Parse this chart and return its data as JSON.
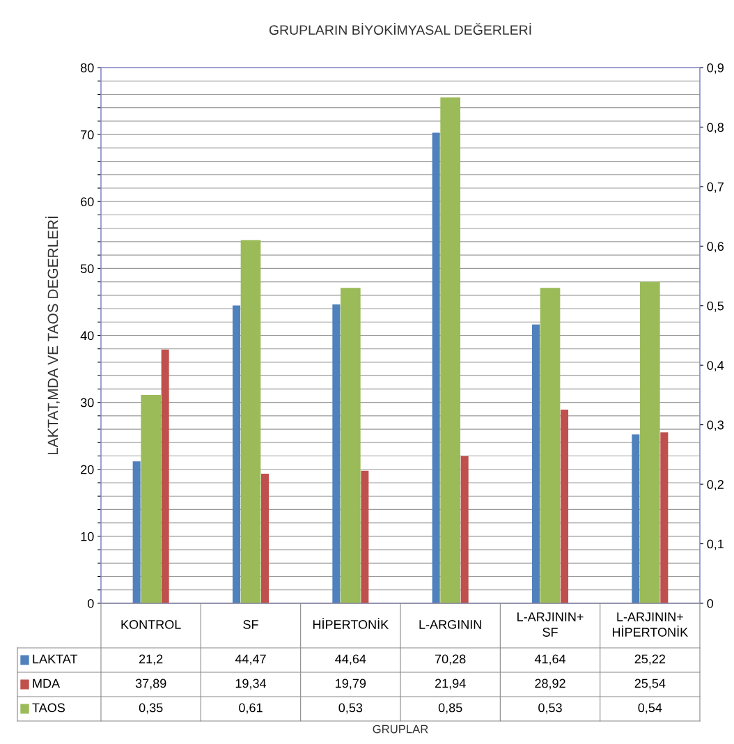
{
  "chart_data": {
    "type": "bar",
    "title": "GRUPLARIN BİYOKİMYASAL DEĞERLERİ",
    "annotations": [
      "GRUPLAR"
    ],
    "ylabel": "LAKTAT,MDA VE TAOS DEGERLERİ",
    "categories": [
      "KONTROL",
      "SF",
      "HİPERTONİK",
      "L-ARGININ",
      "L-ARJININ+SF",
      "L-ARJININ+HİPERTONİK"
    ],
    "series": [
      {
        "name": "LAKTAT",
        "color": "#4f81bd",
        "values": [
          21.2,
          44.47,
          44.64,
          70.28,
          41.64,
          25.22
        ],
        "value_labels": [
          "21,2",
          "44,47",
          "44,64",
          "70,28",
          "41,64",
          "25,22"
        ]
      },
      {
        "name": "MDA",
        "color": "#c0504d",
        "values": [
          37.89,
          19.34,
          19.79,
          21.94,
          28.92,
          25.54
        ],
        "value_labels": [
          "37,89",
          "19,34",
          "19,79",
          "21,94",
          "28,92",
          "25,54"
        ]
      },
      {
        "name": "TAOS",
        "color": "#9bbb59",
        "axis": "y2",
        "values": [
          0.35,
          0.61,
          0.53,
          0.85,
          0.53,
          0.54
        ],
        "value_labels": [
          "0,35",
          "0,61",
          "0,53",
          "0,85",
          "0,53",
          "0,54"
        ]
      }
    ],
    "ylim": [
      0,
      80
    ],
    "yticks": [
      0,
      {
        "value": 2,
        "label": null
      },
      {
        "value": 4,
        "label": null
      },
      {
        "value": 6,
        "label": null
      },
      {
        "value": 8,
        "label": null
      },
      10,
      {
        "value": 12,
        "label": null
      },
      {
        "value": 14,
        "label": null
      },
      {
        "value": 16,
        "label": null
      },
      {
        "value": 18,
        "label": null
      },
      20,
      {
        "value": 22,
        "label": null
      },
      {
        "value": 24,
        "label": null
      },
      {
        "value": 26,
        "label": null
      },
      {
        "value": 28,
        "label": null
      },
      30,
      {
        "value": 32,
        "label": null
      },
      {
        "value": 34,
        "label": null
      },
      {
        "value": 36,
        "label": null
      },
      {
        "value": 38,
        "label": null
      },
      40,
      {
        "value": 42,
        "label": null
      },
      {
        "value": 44,
        "label": null
      },
      {
        "value": 46,
        "label": null
      },
      {
        "value": 48,
        "label": null
      },
      50,
      {
        "value": 52,
        "label": null
      },
      {
        "value": 54,
        "label": null
      },
      {
        "value": 56,
        "label": null
      },
      {
        "value": 58,
        "label": null
      },
      60,
      {
        "value": 62,
        "label": null
      },
      {
        "value": 64,
        "label": null
      },
      {
        "value": 66,
        "label": null
      },
      {
        "value": 68,
        "label": null
      },
      70,
      {
        "value": 72,
        "label": null
      },
      {
        "value": 74,
        "label": null
      },
      {
        "value": 76,
        "label": null
      },
      {
        "value": 78,
        "label": null
      },
      80
    ],
    "y2lim": [
      0,
      0.9
    ],
    "y2ticks": [
      0,
      {
        "value": 0.1,
        "label": "0,1"
      },
      {
        "value": 0.2,
        "label": "0,2"
      },
      {
        "value": 0.3,
        "label": "0,3"
      },
      {
        "value": 0.4,
        "label": "0,4"
      },
      {
        "value": 0.5,
        "label": "0,5"
      },
      {
        "value": 0.6,
        "label": "0,6"
      },
      {
        "value": 0.7,
        "label": "0,7"
      },
      {
        "value": 0.8,
        "label": "0,8"
      },
      {
        "value": 0.9,
        "label": "0,9"
      }
    ],
    "grid": "y",
    "legend": "bottom"
  }
}
